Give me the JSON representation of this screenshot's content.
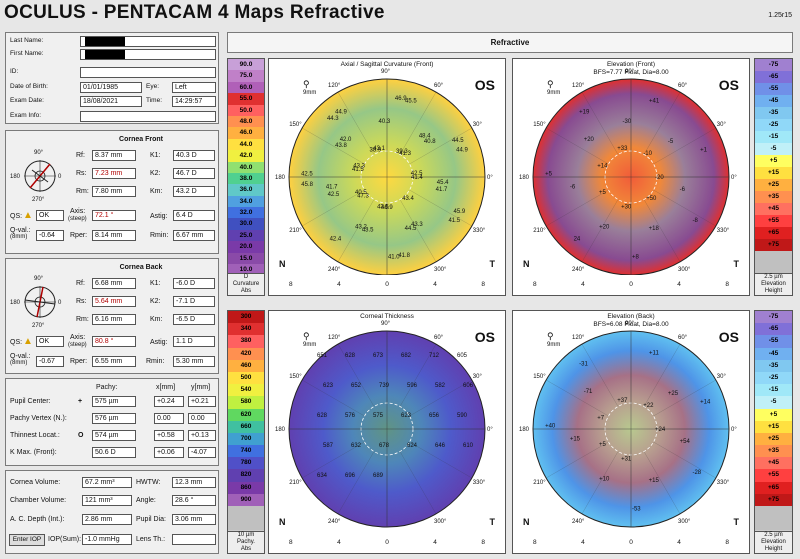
{
  "header": {
    "title": "OCULUS  -  PENTACAM   4 Maps Refractive",
    "version": "1.25r15",
    "tab": "Refractive"
  },
  "patient": {
    "last_name_label": "Last Name:",
    "first_name_label": "First Name:",
    "id_label": "ID:",
    "dob_label": "Date of Birth:",
    "dob": "01/01/1985",
    "eye_label": "Eye:",
    "eye": "Left",
    "exam_date_label": "Exam Date:",
    "exam_date": "18/08/2021",
    "time_label": "Time:",
    "time": "14:29:57",
    "exam_info_label": "Exam Info:"
  },
  "front": {
    "title": "Cornea Front",
    "rf_label": "Rf:",
    "rf": "8.37 mm",
    "k1_label": "K1:",
    "k1": "40.3 D",
    "rs_label": "Rs:",
    "rs": "7.23 mm",
    "k2_label": "K2:",
    "k2": "46.7 D",
    "rm_label": "Rm:",
    "rm": "7.80 mm",
    "km_label": "Km:",
    "km": "43.2 D",
    "qs_label": "QS:",
    "qs": "OK",
    "axis_label": "Axis:",
    "axis_sub": "(steep)",
    "axis": "72.1 °",
    "astig_label": "Astig:",
    "astig": "6.4 D",
    "qval_label": "Q-val.:",
    "qval_sub": "(8mm)",
    "qval": "-0.64",
    "rper_label": "Rper:",
    "rper": "8.14 mm",
    "rmin_label": "Rmin:",
    "rmin": "6.67 mm"
  },
  "back": {
    "title": "Cornea Back",
    "rf_label": "Rf:",
    "rf": "6.68 mm",
    "k1_label": "K1:",
    "k1": "-6.0 D",
    "rs_label": "Rs:",
    "rs": "5.64 mm",
    "k2_label": "K2:",
    "k2": "-7.1 D",
    "rm_label": "Rm:",
    "rm": "6.16 mm",
    "km_label": "Km:",
    "km": "-6.5 D",
    "qs_label": "QS:",
    "qs": "OK",
    "axis_label": "Axis:",
    "axis_sub": "(steep)",
    "axis": "80.8 °",
    "astig_label": "Astig:",
    "astig": "1.1 D",
    "qval_label": "Q-val.:",
    "qval_sub": "(8mm)",
    "qval": "-0.67",
    "rper_label": "Rper:",
    "rper": "6.55 mm",
    "rmin_label": "Rmin:",
    "rmin": "5.30 mm"
  },
  "dial_labels": {
    "top": "90°",
    "left": "180",
    "right": "0",
    "bottom": "270°"
  },
  "pachy": {
    "pachy_label": "Pachy:",
    "x_label": "x[mm]",
    "y_label": "y[mm]",
    "rows": [
      {
        "label": "Pupil Center:",
        "sym": "+",
        "pachy": "575 µm",
        "x": "+0.24",
        "y": "+0.21"
      },
      {
        "label": "Pachy Vertex (N.):",
        "sym": "",
        "pachy": "576 µm",
        "x": "0.00",
        "y": "0.00"
      },
      {
        "label": "Thinnest Locat.:",
        "sym": "O",
        "pachy": "574 µm",
        "x": "+0.58",
        "y": "+0.13"
      },
      {
        "label": "K Max. (Front):",
        "sym": "",
        "pachy": "50.6 D",
        "x": "+0.06",
        "y": "-4.07"
      }
    ]
  },
  "chamber": {
    "volume_label": "Cornea Volume:",
    "volume": "67.2 mm³",
    "hwtw_label": "HWTW:",
    "hwtw": "12.3 mm",
    "chamber_label": "Chamber Volume:",
    "chamber": "121 mm³",
    "angle_label": "Angle:",
    "angle": "28.6 °",
    "acd_label": "A. C. Depth (Int.):",
    "acd": "2.86 mm",
    "pupil_label": "Pupil Dia:",
    "pupil": "3.06 mm",
    "enter_iop": "Enter IOP",
    "iop_label": "IOP(Sum):",
    "iop": "-1.0 mmHg",
    "lens_label": "Lens Th.:"
  },
  "scales": {
    "curvature": {
      "values": [
        "90.0",
        "75.0",
        "60.0",
        "55.0",
        "50.0",
        "48.0",
        "46.0",
        "44.0",
        "42.0",
        "40.0",
        "38.0",
        "36.0",
        "34.0",
        "32.0",
        "30.0",
        "25.0",
        "20.0",
        "15.0",
        "10.0"
      ],
      "colors": [
        "#c8a0d8",
        "#c080c8",
        "#b060b8",
        "#e03030",
        "#ff6060",
        "#ff9050",
        "#ffb040",
        "#ffe040",
        "#f0f040",
        "#90e070",
        "#50d090",
        "#60c8c8",
        "#50a0e0",
        "#4070e0",
        "#4050c0",
        "#6040b0",
        "#7a3aa8",
        "#8a4aa8",
        "#a060b8"
      ],
      "unit": "D",
      "footer1": "Curvature",
      "footer2": "Abs"
    },
    "elev_front": {
      "values": [
        "-75",
        "-65",
        "-55",
        "-45",
        "-35",
        "-25",
        "-15",
        "-5",
        "+5",
        "+15",
        "+25",
        "+35",
        "+45",
        "+55",
        "+65",
        "+75",
        "",
        ""
      ],
      "colors": [
        "#a080d0",
        "#8070d8",
        "#7090e8",
        "#70b0f0",
        "#80c8f0",
        "#90d8f8",
        "#a0e8f8",
        "#c0f0f8",
        "#ffff60",
        "#ffe040",
        "#ffb040",
        "#ff9050",
        "#ff7060",
        "#ff4040",
        "#e02020",
        "#c01818",
        "#c0c0c0",
        "#c0c0c0"
      ],
      "unit": "2.5 µm",
      "footer1": "Elevation",
      "footer2": "Height"
    },
    "pachy": {
      "values": [
        "300",
        "340",
        "380",
        "420",
        "460",
        "500",
        "540",
        "580",
        "620",
        "660",
        "700",
        "740",
        "780",
        "820",
        "860",
        "900",
        "",
        ""
      ],
      "colors": [
        "#c01818",
        "#e03030",
        "#ff6060",
        "#ff9050",
        "#ffb040",
        "#ffe040",
        "#f0f040",
        "#c0f040",
        "#60d860",
        "#40c0a0",
        "#40a0d0",
        "#4070e0",
        "#5050c8",
        "#6040b0",
        "#7a3aa8",
        "#a060b8",
        "#c0c0c0",
        "#c0c0c0"
      ],
      "unit": "10 µm",
      "footer1": "Pachy.",
      "footer2": "Abs"
    },
    "elev_back": {
      "values": [
        "-75",
        "-65",
        "-55",
        "-45",
        "-35",
        "-25",
        "-15",
        "-5",
        "+5",
        "+15",
        "+25",
        "+35",
        "+45",
        "+55",
        "+65",
        "+75",
        "",
        ""
      ],
      "colors": [
        "#a080d0",
        "#8070d8",
        "#7090e8",
        "#70b0f0",
        "#80c8f0",
        "#90d8f8",
        "#a0e8f8",
        "#c0f0f8",
        "#ffff60",
        "#ffe040",
        "#ffb040",
        "#ff9050",
        "#ff7060",
        "#ff4040",
        "#e02020",
        "#c01818",
        "#c0c0c0",
        "#c0c0c0"
      ],
      "unit": "2.5 µm",
      "footer1": "Elevation",
      "footer2": "Height"
    }
  },
  "maps": {
    "axial": {
      "title": "Axial / Sagittal Curvature (Front)",
      "subtitle": "",
      "eye": "OS",
      "n": "N",
      "t": "T",
      "values": [
        "41.4",
        "42.0",
        "41.0",
        "41.3",
        "41.7",
        "41.5",
        "43.1",
        "43.2",
        "44.9",
        "43.3",
        "44.5",
        "45.5",
        "40.5",
        "41.7",
        "44.9",
        "43.5",
        "40.8",
        "42.5",
        "43.4",
        "40.3",
        "42.4",
        "42.5",
        "43.8",
        "41.8",
        "39.3",
        "42.5",
        "45.9",
        "38.9",
        "43.5",
        "44.5",
        "41.5",
        "43.3",
        "46.9",
        "47.3",
        "45.4",
        "44.3",
        "46.9",
        "48.4",
        "45.8"
      ]
    },
    "elev_front": {
      "title": "Elevation (Front)",
      "subtitle": "BFS=7.77 Float, Dia=8.00",
      "eye": "OS",
      "values": [
        "-20",
        "+20",
        "+8",
        "-10",
        "-6",
        "-8",
        "+33",
        "+20",
        "+1",
        "+14",
        "+18",
        "+41",
        "+5",
        "-6",
        "+19",
        "+30",
        "-5",
        "+5",
        "+50",
        "-30",
        "24"
      ]
    },
    "thickness": {
      "title": "Corneal Thickness",
      "subtitle": "",
      "eye": "OS",
      "values": [
        "651",
        "628",
        "673",
        "682",
        "712",
        "605",
        "623",
        "652",
        "739",
        "596",
        "582",
        "606",
        "628",
        "576",
        "575",
        "623",
        "656",
        "590",
        "587",
        "632",
        "678",
        "624",
        "646",
        "610",
        "634",
        "696",
        "689"
      ]
    },
    "elev_back": {
      "title": "Elevation (Back)",
      "subtitle": "BFS=6.08 Float, Dia=8.00",
      "eye": "OS",
      "values": [
        "+24",
        "-71",
        "-53",
        "+22",
        "+15",
        "-28",
        "+37",
        "+10",
        "+14",
        "+7",
        "+15",
        "+11",
        "+5",
        "+54",
        "-31",
        "+31",
        "+25",
        "+40"
      ]
    }
  },
  "axis": {
    "ticks": [
      "8",
      "4",
      "0",
      "4",
      "8"
    ],
    "deg": [
      "90°",
      "60°",
      "30°",
      "0°",
      "330°",
      "300°",
      "270°",
      "240°",
      "210°",
      "180",
      "150°",
      "120°"
    ],
    "mm": "9mm"
  }
}
